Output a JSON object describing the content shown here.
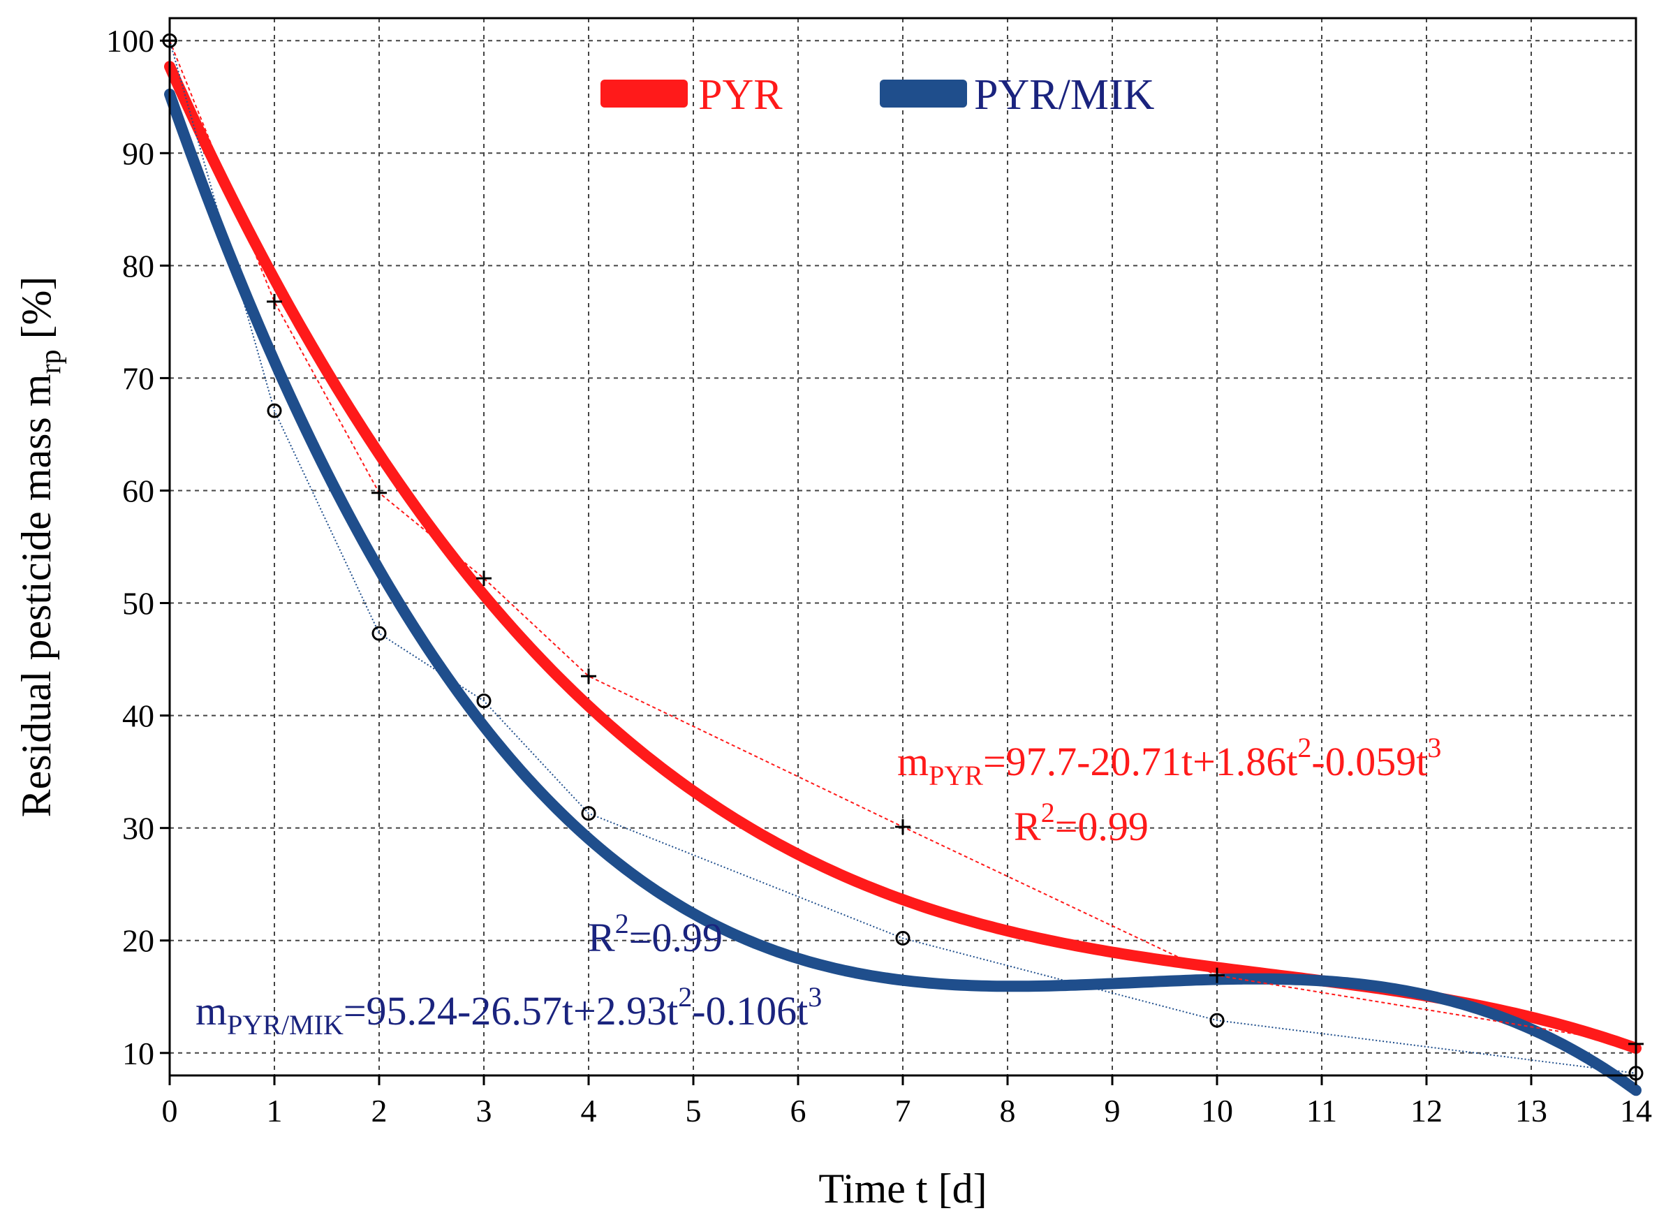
{
  "chart_data": {
    "type": "line",
    "xlabel": "Time t [d]",
    "ylabel_main": "Residual pesticide mass m",
    "ylabel_sub": "rp",
    "ylabel_unit": " [%]",
    "xlim": [
      0,
      14
    ],
    "ylim": [
      8,
      102
    ],
    "xticks": [
      0,
      1,
      2,
      3,
      4,
      5,
      6,
      7,
      8,
      9,
      10,
      11,
      12,
      13,
      14
    ],
    "yticks": [
      10,
      20,
      30,
      40,
      50,
      60,
      70,
      80,
      90,
      100
    ],
    "grid": true,
    "legend_position": "top-center",
    "series": [
      {
        "name": "PYR",
        "color": "#ff1a1a",
        "marker": "plus",
        "x": [
          0,
          1,
          2,
          3,
          4,
          7,
          10,
          14
        ],
        "y": [
          100,
          76.8,
          59.8,
          52.2,
          43.5,
          30.1,
          16.9,
          10.8
        ],
        "fit": {
          "a0": 97.7,
          "a1": -20.71,
          "a2": 1.86,
          "a3": -0.059,
          "x_end": 14
        }
      },
      {
        "name": "PYR/MIK",
        "color": "#1f4e8c",
        "marker": "circle",
        "x": [
          0,
          1,
          2,
          3,
          4,
          7,
          10,
          14
        ],
        "y": [
          100,
          67.1,
          47.3,
          41.3,
          31.3,
          20.2,
          12.9,
          8.2
        ],
        "fit": {
          "a0": 95.24,
          "a1": -26.57,
          "a2": 2.93,
          "a3": -0.106,
          "x_end": 14
        }
      }
    ],
    "annotations": {
      "pyr_eq": {
        "lead": "m",
        "sub": "PYR",
        "p1": "=97.7-20.71t+1.86t",
        "sup1": "2",
        "p2": "-0.059t",
        "sup2": "3",
        "r2_lead": "R",
        "r2_sup": "2",
        "r2_val": "=0.99"
      },
      "mik_eq": {
        "lead": "m",
        "sub": "PYR/MIK",
        "p1": "=95.24-26.57t+2.93t",
        "sup1": "2",
        "p2": "-0.106t",
        "sup2": "3",
        "r2_lead": "R",
        "r2_sup": "2",
        "r2_val": "=0.99"
      }
    }
  }
}
